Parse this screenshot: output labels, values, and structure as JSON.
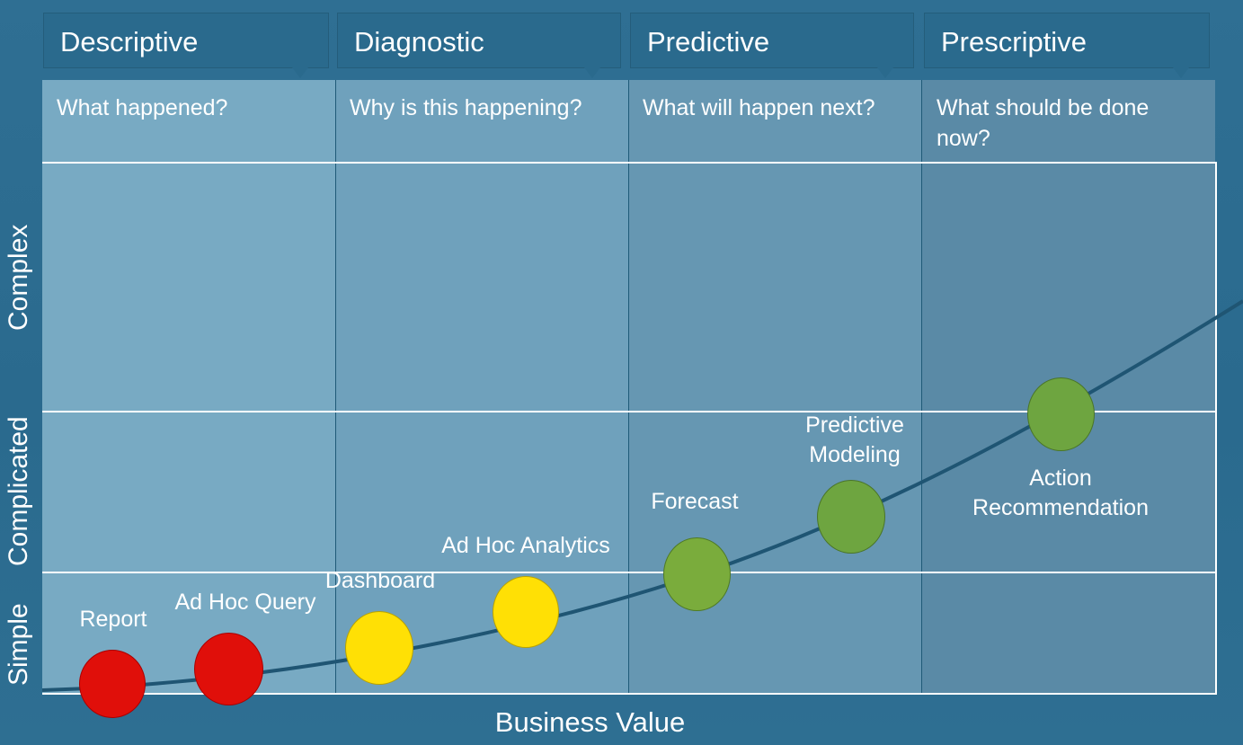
{
  "stages": [
    {
      "name": "Descriptive",
      "question": "What happened?"
    },
    {
      "name": "Diagnostic",
      "question": "Why is this happening?"
    },
    {
      "name": "Predictive",
      "question": "What will happen next?"
    },
    {
      "name": "Prescriptive",
      "question": "What should be done now?"
    }
  ],
  "complexity_levels": [
    "Complex",
    "Complicated",
    "Simple"
  ],
  "x_axis_label": "Business Value",
  "capabilities": [
    {
      "label": "Report",
      "color": "#e00f0a"
    },
    {
      "label": "Ad Hoc Query",
      "color": "#e00f0a"
    },
    {
      "label": "Dashboard",
      "color": "#ffe005"
    },
    {
      "label": "Ad Hoc Analytics",
      "color": "#ffe005"
    },
    {
      "label": "Forecast",
      "color": "#7aac3c"
    },
    {
      "label": "Predictive Modeling",
      "color": "#6ea540"
    },
    {
      "label": "Action Recommendation",
      "color": "#6ea540"
    }
  ],
  "colors": {
    "background": "#2c6c90",
    "curve": "#1f5573",
    "descriptive_column": "#78aac3",
    "diagnostic_column": "#6fa1bc",
    "predictive_column": "#6697b2",
    "prescriptive_column": "#5a8aa6"
  }
}
